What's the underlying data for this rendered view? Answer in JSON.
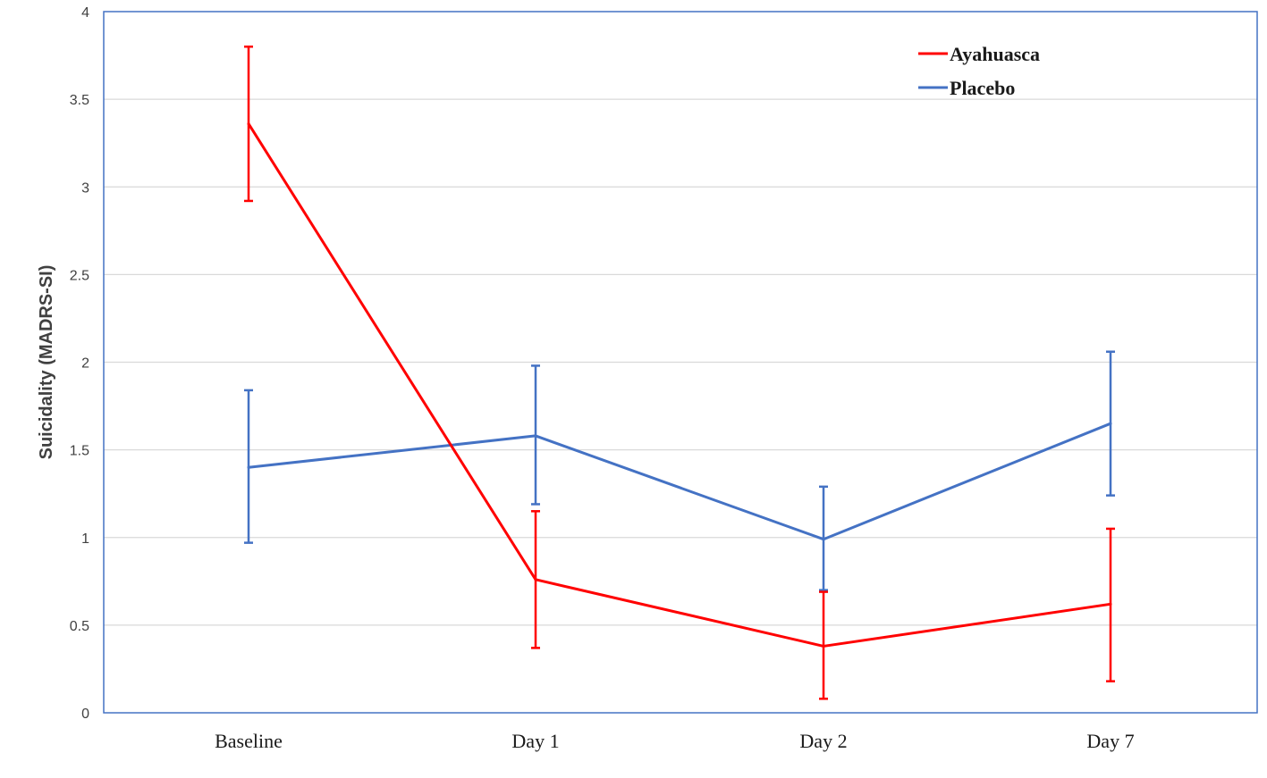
{
  "chart_data": {
    "type": "line",
    "title": "",
    "xlabel": "",
    "ylabel": "Suicidality (MADRS-SI)",
    "categories": [
      "Baseline",
      "Day 1",
      "Day 2",
      "Day 7"
    ],
    "ylim": [
      0,
      4
    ],
    "yticks": [
      0,
      0.5,
      1,
      1.5,
      2,
      2.5,
      3,
      3.5,
      4
    ],
    "ytick_labels": [
      "0",
      "0.5",
      "1",
      "1.5",
      "2",
      "2.5",
      "3",
      "3.5",
      "4"
    ],
    "grid": "horizontal",
    "legend_position": "top-right",
    "series": [
      {
        "name": "Ayahuasca",
        "color": "#ff0000",
        "values": [
          3.36,
          0.76,
          0.38,
          0.62
        ],
        "err_low": [
          2.92,
          0.37,
          0.08,
          0.18
        ],
        "err_high": [
          3.8,
          1.15,
          0.69,
          1.05
        ]
      },
      {
        "name": "Placebo",
        "color": "#4472c4",
        "values": [
          1.4,
          1.58,
          0.99,
          1.65
        ],
        "err_low": [
          0.97,
          1.19,
          0.7,
          1.24
        ],
        "err_high": [
          1.84,
          1.98,
          1.29,
          2.06
        ]
      }
    ]
  }
}
